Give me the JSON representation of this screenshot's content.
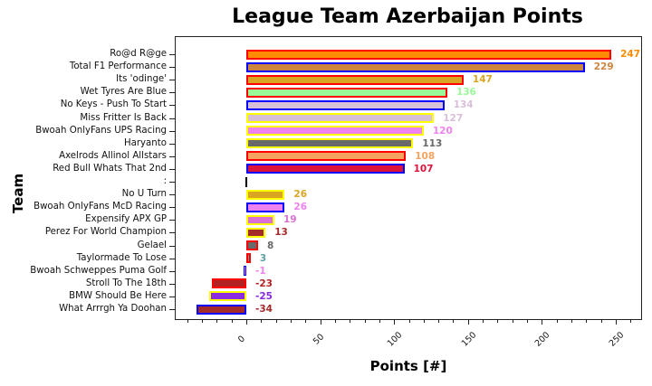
{
  "chart_data": {
    "type": "bar",
    "orientation": "horizontal",
    "title": "League Team Azerbaijan Points",
    "xlabel": "Points [#]",
    "ylabel": "Team",
    "xlim": [
      -42,
      265
    ],
    "xticks": [
      0,
      50,
      100,
      150,
      200,
      250
    ],
    "grid": false,
    "legend": null,
    "categories": [
      "Ro@d R@ge",
      "Total F1 Performance",
      "Its 'odinge'",
      "Wet Tyres Are Blue",
      "No Keys - Push To Start",
      "Miss Fritter Is Back",
      "Bwoah OnlyFans UPS Racing",
      "Haryanto",
      "Axelrods Allinol Allstars",
      "Red Bull Whats That 2nd",
      ":",
      "No U Turn",
      "Bwoah OnlyFans McD Racing",
      "Expensify APX GP",
      "Perez For World Champion",
      "Gelael",
      "Taylormade To Lose",
      "Bwoah Schweppes Puma Golf",
      "Stroll To The 18th",
      "BMW Should Be Here",
      "What Arrrgh Ya Doohan"
    ],
    "values": [
      247,
      229,
      147,
      136,
      134,
      127,
      120,
      113,
      108,
      107,
      0,
      26,
      26,
      19,
      13,
      8,
      3,
      -1,
      -23,
      -25,
      -34
    ],
    "value_labels": [
      "247",
      "229",
      "147",
      "136",
      "134",
      "127",
      "120",
      "113",
      "108",
      "107",
      "",
      "26",
      "26",
      "19",
      "13",
      "8",
      "3",
      "-1",
      "-23",
      "-25",
      "-34"
    ],
    "fill_colors": [
      "#ff8c00",
      "#cd853f",
      "#daa520",
      "#98fb98",
      "#d8bfd8",
      "#d8bfd8",
      "#ee82ee",
      "#696969",
      "#f4a460",
      "#dc143c",
      "#000000",
      "#daa520",
      "#ee82ee",
      "#da70d6",
      "#a52a2a",
      "#696969",
      "#5f9ea0",
      "#ee82ee",
      "#b22222",
      "#8a2be2",
      "#a52a2a"
    ],
    "edge_colors": [
      "#ff0000",
      "#0000ff",
      "#ff0000",
      "#ff0000",
      "#0000ff",
      "#ffff00",
      "#ffff00",
      "#ffff00",
      "#ff0000",
      "#0000ff",
      "#000000",
      "#ffff00",
      "#0000ff",
      "#ffff00",
      "#ffff00",
      "#ff0000",
      "#ff0000",
      "#0000ff",
      "#ff0000",
      "#ffff00",
      "#0000ff"
    ],
    "label_colors": [
      "#ff8c00",
      "#cd853f",
      "#daa520",
      "#98fb98",
      "#d8bfd8",
      "#d8bfd8",
      "#ee82ee",
      "#696969",
      "#f4a460",
      "#dc143c",
      "#000000",
      "#daa520",
      "#ee82ee",
      "#da70d6",
      "#a52a2a",
      "#696969",
      "#5f9ea0",
      "#ee82ee",
      "#b22222",
      "#8a2be2",
      "#a52a2a"
    ]
  }
}
